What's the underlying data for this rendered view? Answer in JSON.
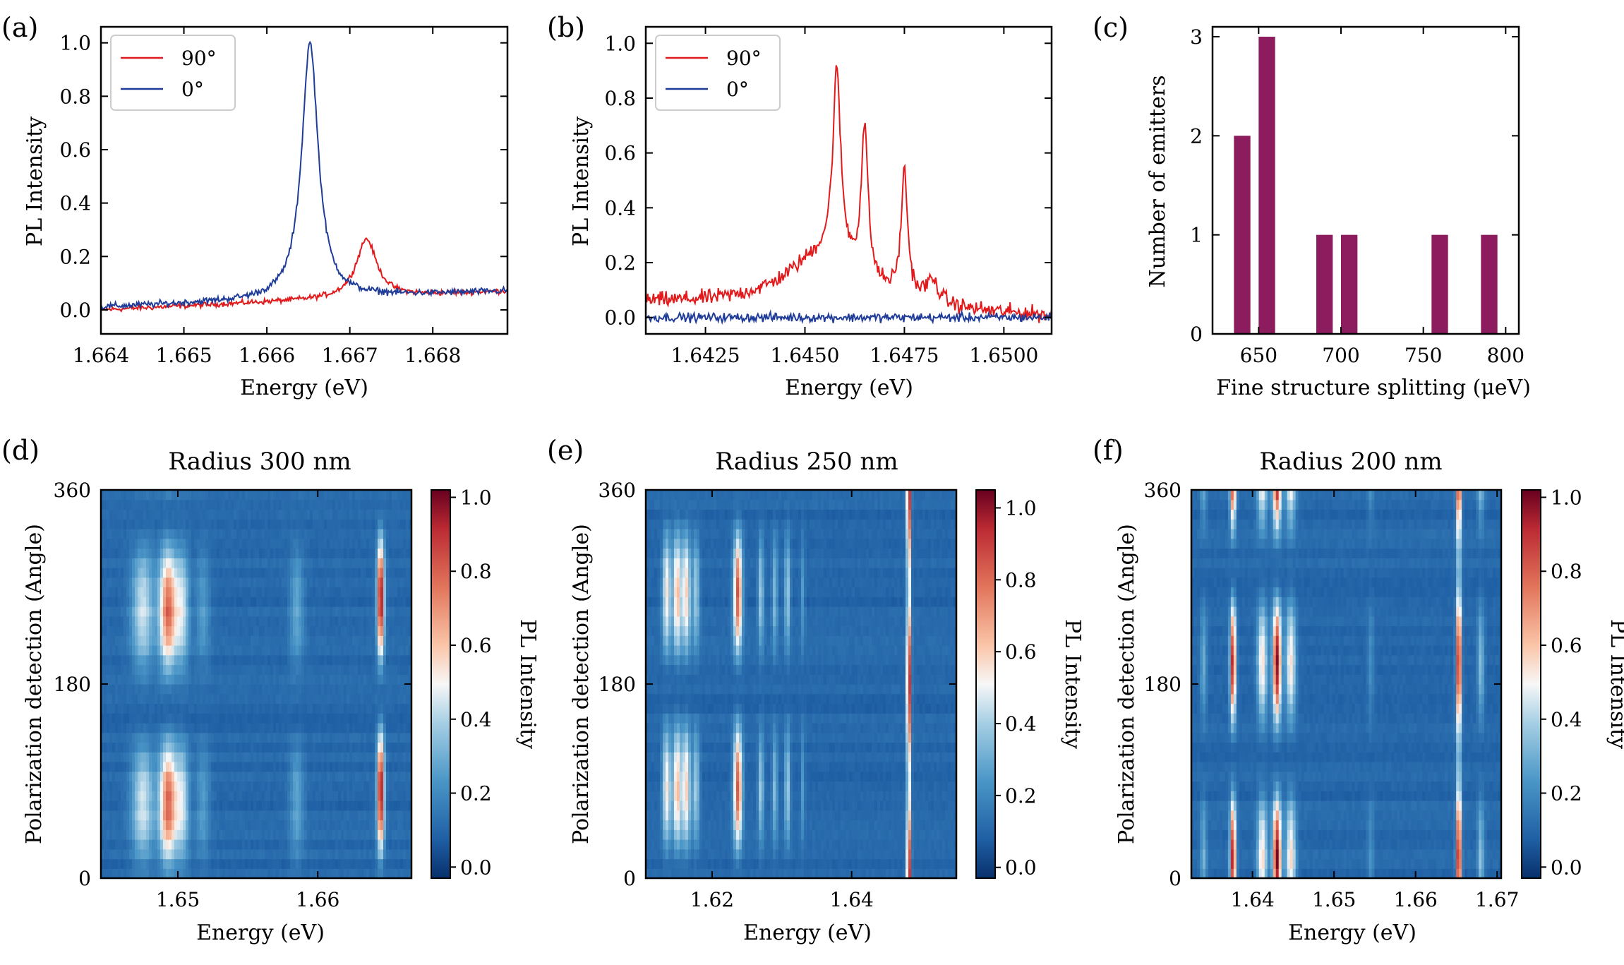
{
  "panels": {
    "a": {
      "label": "(a)",
      "xlabel": "Energy (eV)",
      "ylabel": "PL Intensity"
    },
    "b": {
      "label": "(b)",
      "xlabel": "Energy (eV)",
      "ylabel": "PL Intensity"
    },
    "c": {
      "label": "(c)",
      "xlabel": "Fine structure splitting (μeV)",
      "ylabel": "Number of emitters"
    },
    "d": {
      "label": "(d)",
      "title": "Radius 300 nm",
      "xlabel": "Energy (eV)",
      "ylabel": "Polarization detection (Angle)",
      "cbar_label": "PL Intensity"
    },
    "e": {
      "label": "(e)",
      "title": "Radius 250 nm",
      "xlabel": "Energy (eV)",
      "ylabel": "Polarization detection (Angle)",
      "cbar_label": "PL Intensity"
    },
    "f": {
      "label": "(f)",
      "title": "Radius 200 nm",
      "xlabel": "Energy (eV)",
      "ylabel": "Polarization detection (Angle)",
      "cbar_label": "PL Intensity"
    }
  },
  "chart_data": [
    {
      "id": "a",
      "type": "line",
      "xlim": [
        1.664,
        1.6689
      ],
      "ylim": [
        -0.09,
        1.06
      ],
      "xticks": [
        "1.664",
        "1.665",
        "1.666",
        "1.667",
        "1.668"
      ],
      "yticks": [
        "0.0",
        "0.2",
        "0.4",
        "0.6",
        "0.8",
        "1.0"
      ],
      "legend": {
        "location": "top-left"
      },
      "series": [
        {
          "name": "90°",
          "color": "#e31a1c",
          "peaks": [
            {
              "x": 1.6672,
              "amp": 0.22,
              "width": 0.00015
            }
          ],
          "baseline_start": 0.0,
          "baseline_end": 0.07,
          "noise": 0.012
        },
        {
          "name": "0°",
          "color": "#1f3c99",
          "peaks": [
            {
              "x": 1.66652,
              "amp": 0.96,
              "width": 0.00012
            }
          ],
          "baseline_start": 0.01,
          "baseline_end": 0.07,
          "noise": 0.015
        }
      ]
    },
    {
      "id": "b",
      "type": "line",
      "xlim": [
        1.641,
        1.6512
      ],
      "ylim": [
        -0.06,
        1.06
      ],
      "xticks": [
        "1.6425",
        "1.6450",
        "1.6475",
        "1.6500"
      ],
      "yticks": [
        "0.0",
        "0.2",
        "0.4",
        "0.6",
        "0.8",
        "1.0"
      ],
      "legend": {
        "location": "top-left"
      },
      "series": [
        {
          "name": "90°",
          "color": "#e31a1c",
          "peaks": [
            {
              "x": 1.6458,
              "amp": 0.68,
              "width": 0.00012
            },
            {
              "x": 1.6465,
              "amp": 0.55,
              "width": 0.0001
            },
            {
              "x": 1.6475,
              "amp": 0.45,
              "width": 0.0001
            },
            {
              "x": 1.6455,
              "amp": 0.2,
              "width": 0.0012
            },
            {
              "x": 1.6482,
              "amp": 0.08,
              "width": 0.0002
            }
          ],
          "baseline_start": 0.05,
          "baseline_end": 0.0,
          "noise": 0.035
        },
        {
          "name": "0°",
          "color": "#1f3c99",
          "peaks": [],
          "baseline_start": 0.0,
          "baseline_end": 0.0,
          "noise": 0.02
        }
      ]
    },
    {
      "id": "c",
      "type": "bar",
      "xlim": [
        622,
        808
      ],
      "ylim": [
        0,
        3.1
      ],
      "categories": [
        640,
        655,
        690,
        705,
        760,
        790
      ],
      "values": [
        2,
        3,
        1,
        1,
        1,
        1
      ],
      "bar_width": 10,
      "color": "#8c1c5e",
      "xticks": [
        "650",
        "700",
        "750",
        "800"
      ],
      "yticks": [
        "0",
        "1",
        "2",
        "3"
      ]
    },
    {
      "id": "d",
      "type": "heatmap",
      "xlim": [
        1.6445,
        1.6667
      ],
      "ylim": [
        0,
        360
      ],
      "xticks": [
        "1.65",
        "1.66"
      ],
      "yticks": [
        "0",
        "180",
        "360"
      ],
      "clim": [
        -0.03,
        1.02
      ],
      "colorbar_ticks": [
        "0.0",
        "0.2",
        "0.4",
        "0.6",
        "0.8",
        "1.0"
      ],
      "lines": [
        {
          "x": 1.6475,
          "w": 0.0008,
          "amp": 0.35,
          "phase": 70
        },
        {
          "x": 1.6493,
          "w": 0.0006,
          "amp": 0.7,
          "phase": 70
        },
        {
          "x": 1.6503,
          "w": 0.0005,
          "amp": 0.35,
          "phase": 70
        },
        {
          "x": 1.6518,
          "w": 0.0005,
          "amp": 0.15,
          "phase": 70
        },
        {
          "x": 1.6585,
          "w": 0.0005,
          "amp": 0.18,
          "phase": 70
        },
        {
          "x": 1.6645,
          "w": 0.00025,
          "amp": 0.9,
          "phase": 80
        }
      ]
    },
    {
      "id": "e",
      "type": "heatmap",
      "xlim": [
        1.6105,
        1.655
      ],
      "ylim": [
        0,
        360
      ],
      "xticks": [
        "1.62",
        "1.64"
      ],
      "yticks": [
        "0",
        "180",
        "360"
      ],
      "clim": [
        -0.03,
        1.05
      ],
      "colorbar_ticks": [
        "0.0",
        "0.2",
        "0.4",
        "0.6",
        "0.8",
        "1.0"
      ],
      "lines": [
        {
          "x": 1.6135,
          "w": 0.0006,
          "amp": 0.45,
          "phase": 85
        },
        {
          "x": 1.615,
          "w": 0.0006,
          "amp": 0.55,
          "phase": 85
        },
        {
          "x": 1.6163,
          "w": 0.0006,
          "amp": 0.5,
          "phase": 85
        },
        {
          "x": 1.6177,
          "w": 0.0005,
          "amp": 0.3,
          "phase": 85
        },
        {
          "x": 1.6237,
          "w": 0.0006,
          "amp": 0.75,
          "phase": 85
        },
        {
          "x": 1.627,
          "w": 0.0004,
          "amp": 0.3,
          "phase": 85
        },
        {
          "x": 1.629,
          "w": 0.0004,
          "amp": 0.25,
          "phase": 85
        },
        {
          "x": 1.6308,
          "w": 0.0004,
          "amp": 0.3,
          "phase": 85
        },
        {
          "x": 1.633,
          "w": 0.0003,
          "amp": 0.15,
          "phase": 85
        },
        {
          "x": 1.6482,
          "w": 0.0003,
          "amp": 0.95,
          "phase": 0,
          "base": 0.5
        }
      ]
    },
    {
      "id": "f",
      "type": "heatmap",
      "xlim": [
        1.6325,
        1.6705
      ],
      "ylim": [
        0,
        360
      ],
      "xticks": [
        "1.64",
        "1.65",
        "1.66",
        "1.67"
      ],
      "yticks": [
        "0",
        "180",
        "360"
      ],
      "clim": [
        -0.03,
        1.02
      ],
      "colorbar_ticks": [
        "0.0",
        "0.2",
        "0.4",
        "0.6",
        "0.8",
        "1.0"
      ],
      "lines": [
        {
          "x": 1.634,
          "w": 0.0004,
          "amp": 0.2,
          "phase": 20
        },
        {
          "x": 1.6376,
          "w": 0.00035,
          "amp": 0.85,
          "phase": 20
        },
        {
          "x": 1.6412,
          "w": 0.0006,
          "amp": 0.45,
          "phase": 20
        },
        {
          "x": 1.643,
          "w": 0.0005,
          "amp": 0.9,
          "phase": 20
        },
        {
          "x": 1.6447,
          "w": 0.0006,
          "amp": 0.45,
          "phase": 20
        },
        {
          "x": 1.6545,
          "w": 0.0004,
          "amp": 0.12,
          "phase": 20
        },
        {
          "x": 1.6653,
          "w": 0.0003,
          "amp": 0.95,
          "phase": 20,
          "base": 0.3
        },
        {
          "x": 1.668,
          "w": 0.0004,
          "amp": 0.25,
          "phase": 20
        }
      ]
    }
  ]
}
